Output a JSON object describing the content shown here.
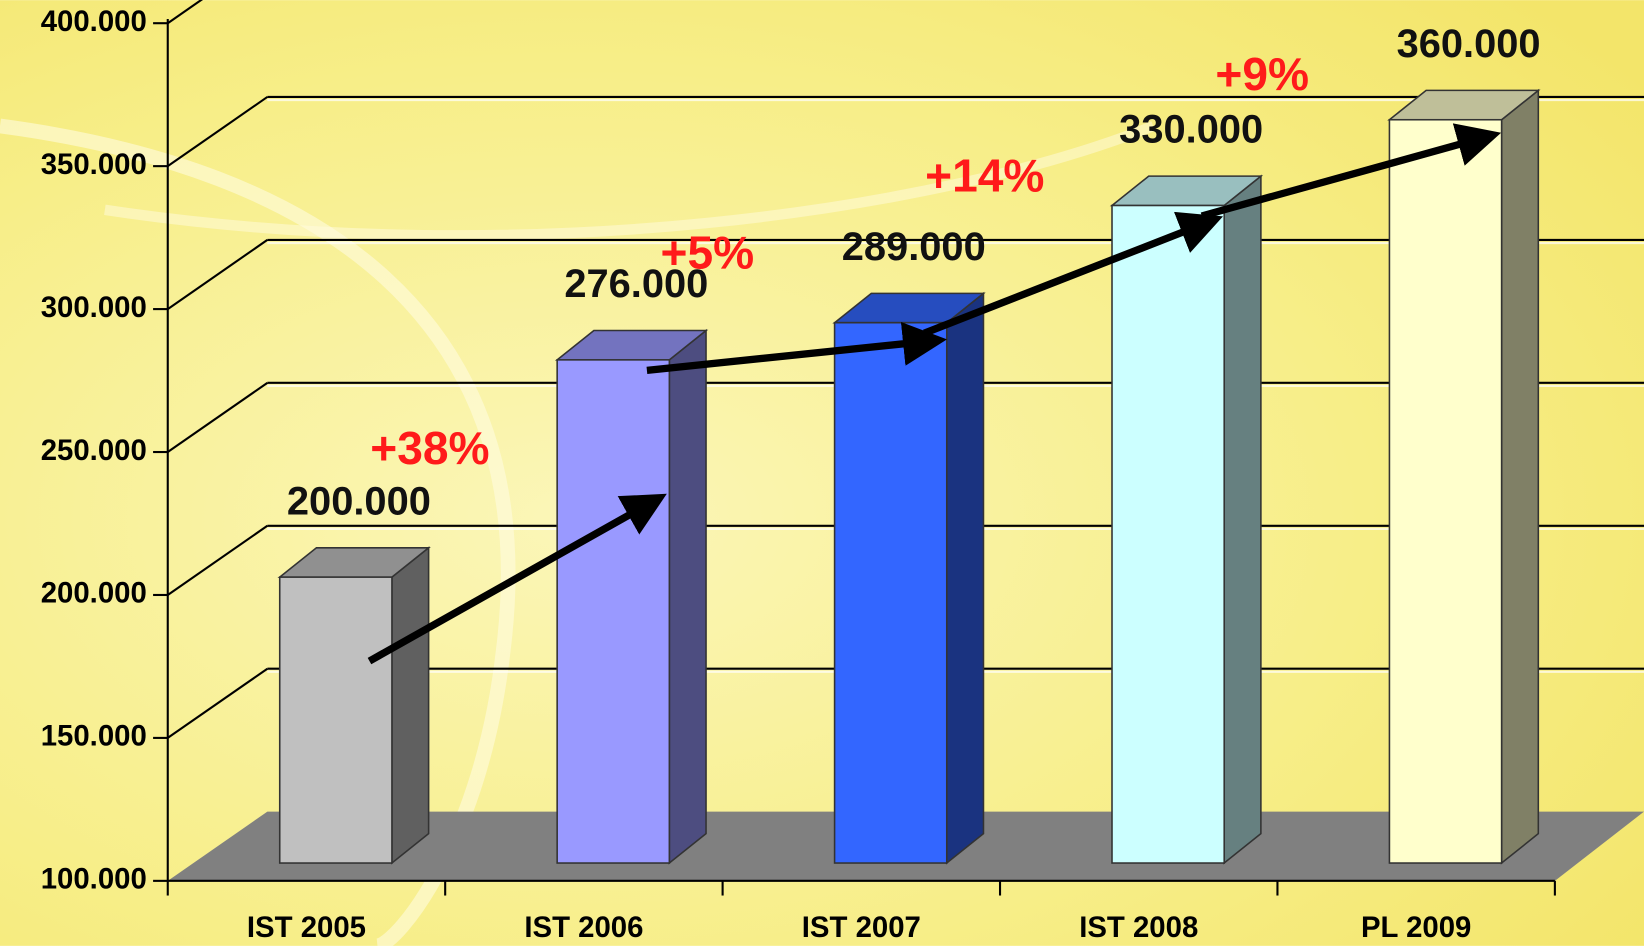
{
  "chart_data": {
    "type": "bar",
    "categories": [
      "IST 2005",
      "IST 2006",
      "IST 2007",
      "IST 2008",
      "PL 2009"
    ],
    "values": [
      200000,
      276000,
      289000,
      330000,
      360000
    ],
    "value_labels": [
      "200.000",
      "276.000",
      "289.000",
      "330.000",
      "360.000"
    ],
    "colors": [
      "#c0c0c0",
      "#9999ff",
      "#3366ff",
      "#ccffff",
      "#ffffcc"
    ],
    "ylim": [
      100000,
      400000
    ],
    "yticks": [
      {
        "value": 100000,
        "label": "100.000"
      },
      {
        "value": 150000,
        "label": "150.000"
      },
      {
        "value": 200000,
        "label": "200.000"
      },
      {
        "value": 250000,
        "label": "250.000"
      },
      {
        "value": 300000,
        "label": "300.000"
      },
      {
        "value": 350000,
        "label": "350.000"
      },
      {
        "value": 400000,
        "label": "400.000"
      }
    ],
    "grid": true,
    "annotations": [
      "+38%",
      "+5%",
      "+14%",
      "+9%"
    ]
  }
}
